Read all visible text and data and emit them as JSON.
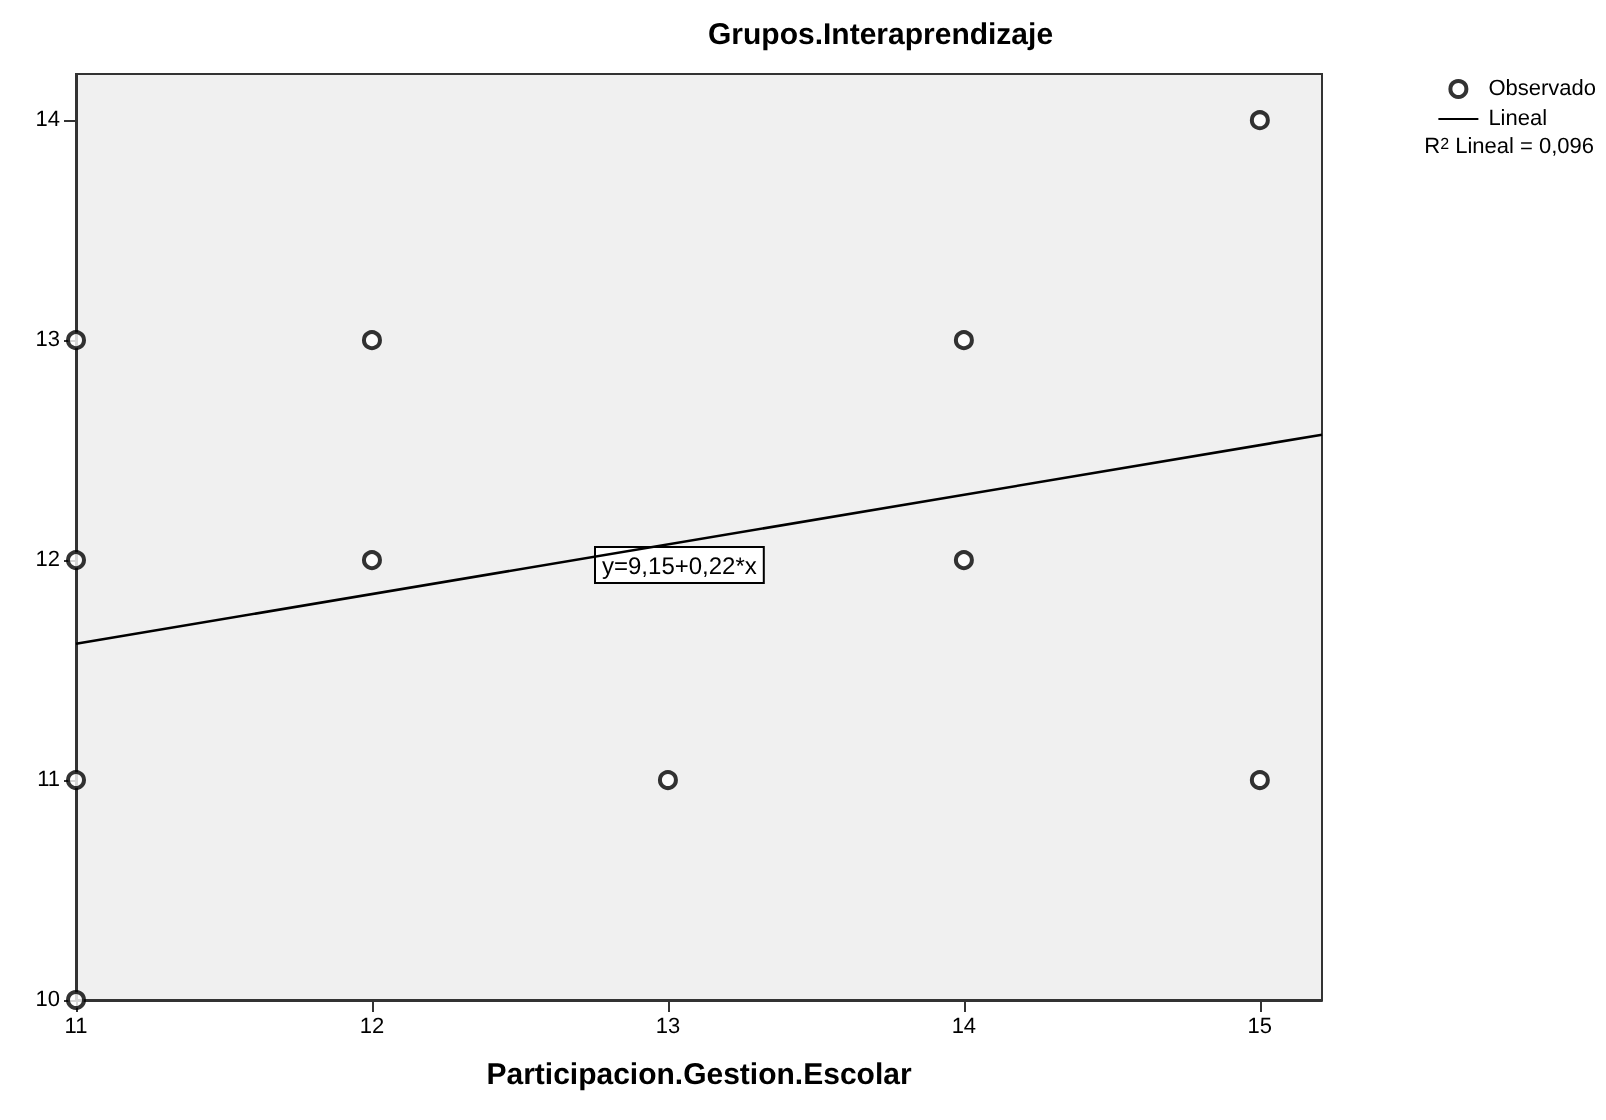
{
  "chart_data": {
    "type": "scatter",
    "title": "Grupos.Interaprendizaje",
    "xlabel": "Participacion.Gestion.Escolar",
    "series": [
      {
        "name": "Observado",
        "color": "#000000",
        "marker": "circle",
        "x": [
          11,
          11,
          11,
          11,
          12,
          12,
          13,
          14,
          14,
          15,
          15
        ],
        "values": [
          13,
          12,
          11,
          10,
          13,
          12,
          11,
          13,
          12,
          14,
          11
        ]
      },
      {
        "name": "Lineal",
        "type": "line",
        "color": "#000000",
        "line_style": "solid",
        "marker": "none",
        "x": [
          11,
          15.21
        ],
        "values": [
          11.62,
          12.57
        ]
      }
    ],
    "xlim": [
      11,
      15.21
    ],
    "xticks": [
      11,
      12,
      13,
      14,
      15
    ],
    "ylim": [
      10,
      14.21
    ],
    "yticks": [
      10,
      11,
      12,
      13,
      14
    ],
    "grid": false,
    "legend": "top right",
    "annotations": [
      "y=9,15+0,22*x",
      "R$^{2}$ Lineal = 0,096"
    ]
  }
}
